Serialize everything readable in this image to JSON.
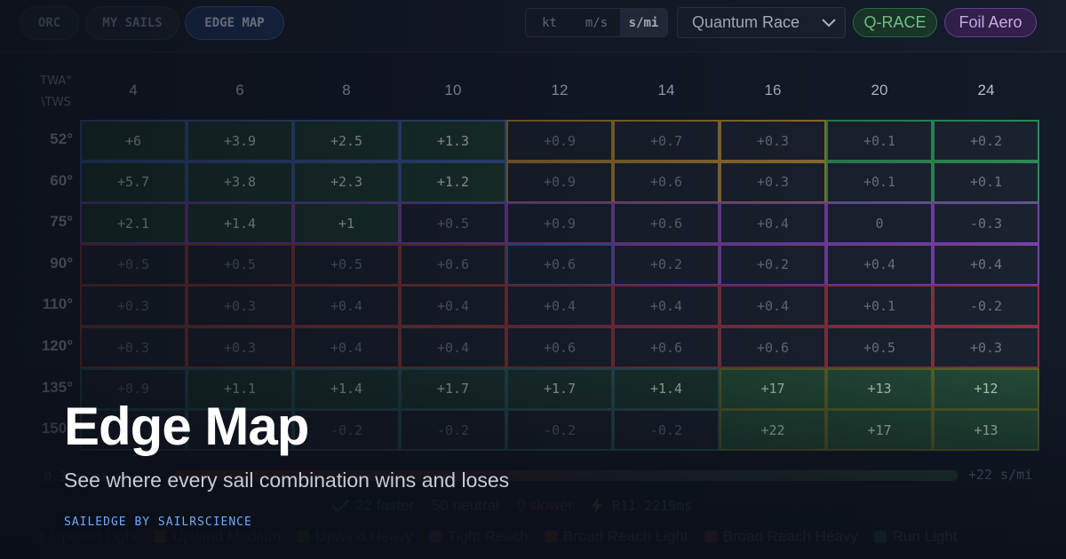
{
  "tabs": [
    {
      "label": "ORC",
      "active": false
    },
    {
      "label": "MY SAILS",
      "active": false
    },
    {
      "label": "EDGE MAP",
      "active": true
    }
  ],
  "units": [
    {
      "label": "kt",
      "active": false
    },
    {
      "label": "m/s",
      "active": false
    },
    {
      "label": "s/mi",
      "active": true
    }
  ],
  "boat_select": {
    "value": "Quantum Race"
  },
  "badges": {
    "qrace": "Q-RACE",
    "foil": "Foil Aero"
  },
  "table": {
    "corner_top": "TWA°",
    "corner_bottom": "\\TWS",
    "tws": [
      "4",
      "6",
      "8",
      "10",
      "12",
      "14",
      "16",
      "20",
      "24"
    ],
    "twa": [
      "52°",
      "60°",
      "75°",
      "90°",
      "110°",
      "120°",
      "135°",
      "150°"
    ],
    "values": [
      [
        "+6",
        "+3.9",
        "+2.5",
        "+1.3",
        "+0.9",
        "+0.7",
        "+0.3",
        "+0.1",
        "+0.2"
      ],
      [
        "+5.7",
        "+3.8",
        "+2.3",
        "+1.2",
        "+0.9",
        "+0.6",
        "+0.3",
        "+0.1",
        "+0.1"
      ],
      [
        "+2.1",
        "+1.4",
        "+1",
        "+0.5",
        "+0.9",
        "+0.6",
        "+0.4",
        "0",
        "-0.3"
      ],
      [
        "+0.5",
        "+0.5",
        "+0.5",
        "+0.6",
        "+0.6",
        "+0.2",
        "+0.2",
        "+0.4",
        "+0.4"
      ],
      [
        "+0.3",
        "+0.3",
        "+0.4",
        "+0.4",
        "+0.4",
        "+0.4",
        "+0.4",
        "+0.1",
        "-0.2"
      ],
      [
        "+0.3",
        "+0.3",
        "+0.4",
        "+0.4",
        "+0.6",
        "+0.6",
        "+0.6",
        "+0.5",
        "+0.3"
      ],
      [
        "+0.9",
        "+1.1",
        "+1.4",
        "+1.7",
        "+1.7",
        "+1.4",
        "+17",
        "+13",
        "+12"
      ],
      [
        "",
        "",
        "-0.2",
        "-0.2",
        "-0.2",
        "-0.2",
        "+22",
        "+17",
        "+13"
      ]
    ],
    "zones": [
      [
        "UL",
        "UL",
        "UL",
        "UL",
        "UM",
        "UM",
        "UM",
        "UH",
        "UH"
      ],
      [
        "UL",
        "UL",
        "UL",
        "UL",
        "UM",
        "UM",
        "UM",
        "UH",
        "UH"
      ],
      [
        "TR",
        "TR",
        "TR",
        "TR",
        "TR",
        "TR",
        "TR",
        "TR",
        "TR"
      ],
      [
        "BL",
        "BL",
        "BL",
        "BL",
        "UL",
        "TR",
        "TR",
        "TR",
        "TR"
      ],
      [
        "BL",
        "BL",
        "BL",
        "BL",
        "BH",
        "BH",
        "BH",
        "BH",
        "BH"
      ],
      [
        "BL",
        "BL",
        "BL",
        "BL",
        "BH",
        "BH",
        "BH",
        "BH",
        "BH"
      ],
      [
        "RL",
        "RL",
        "RL",
        "RL",
        "RL",
        "RL",
        "RH",
        "RH",
        "RH"
      ],
      [
        "RL",
        "RL",
        "RL",
        "RL",
        "RL",
        "RL",
        "RH",
        "RH",
        "RH"
      ]
    ],
    "highlights": [
      [
        1,
        1,
        1,
        1,
        0,
        0,
        0,
        0,
        0
      ],
      [
        1,
        1,
        1,
        1,
        0,
        0,
        0,
        0,
        0
      ],
      [
        1,
        1,
        1,
        0,
        0,
        0,
        0,
        0,
        0
      ],
      [
        0,
        0,
        0,
        0,
        0,
        0,
        0,
        0,
        0
      ],
      [
        0,
        0,
        0,
        0,
        0,
        0,
        0,
        0,
        0
      ],
      [
        0,
        0,
        0,
        0,
        0,
        0,
        0,
        0,
        0
      ],
      [
        0,
        1,
        1,
        1,
        1,
        1,
        2,
        2,
        2
      ],
      [
        0,
        0,
        0,
        0,
        0,
        0,
        2,
        2,
        2
      ]
    ]
  },
  "scale": {
    "left": "-0.3 s/mi",
    "right": "+22 s/mi"
  },
  "stats": {
    "faster": "22 faster",
    "neutral": "50 neutral",
    "slower": "0 slower",
    "run": "R11 2219ms"
  },
  "legend": [
    {
      "label": "Upwind Light",
      "color": "#3b5aa0"
    },
    {
      "label": "Upwind Medium",
      "color": "#a07a2e"
    },
    {
      "label": "Upwind Heavy",
      "color": "#2e7a4a"
    },
    {
      "label": "Tight Reach",
      "color": "#7a42a8"
    },
    {
      "label": "Broad Reach Light",
      "color": "#a0473a"
    },
    {
      "label": "Broad Reach Heavy",
      "color": "#9a3a4a"
    },
    {
      "label": "Run Light",
      "color": "#2e6a6a"
    }
  ],
  "zone_colors": {
    "UL": "#3b5aa0",
    "UM": "#a07a2e",
    "UH": "#2e8a55",
    "TR": "#7a42a8",
    "BL": "#8a3a36",
    "BH": "#8a3442",
    "RL": "#2c5a62",
    "RH": "#5f6a2a"
  },
  "hero": {
    "title": "Edge Map",
    "subtitle": "See where every sail combination wins and loses",
    "brand": "SAILEDGE BY SAILRSCIENCE"
  }
}
